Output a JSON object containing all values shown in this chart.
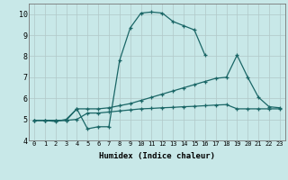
{
  "xlabel": "Humidex (Indice chaleur)",
  "background_color": "#c8e8e8",
  "grid_color": "#b0c8c8",
  "line_color": "#1a6666",
  "xlim": [
    -0.5,
    23.5
  ],
  "ylim": [
    4,
    10.5
  ],
  "xticks": [
    0,
    1,
    2,
    3,
    4,
    5,
    6,
    7,
    8,
    9,
    10,
    11,
    12,
    13,
    14,
    15,
    16,
    17,
    18,
    19,
    20,
    21,
    22,
    23
  ],
  "yticks": [
    4,
    5,
    6,
    7,
    8,
    9,
    10
  ],
  "line1_x": [
    0,
    1,
    2,
    3,
    4,
    5,
    6,
    7,
    8,
    9,
    10,
    11,
    12,
    13,
    14,
    15,
    16,
    17,
    18,
    19,
    20,
    21,
    22,
    23
  ],
  "line1_y": [
    4.95,
    4.95,
    4.95,
    4.95,
    5.5,
    4.55,
    4.65,
    4.65,
    7.8,
    9.35,
    10.05,
    10.1,
    10.05,
    9.65,
    9.45,
    9.25,
    8.05,
    null,
    null,
    null,
    null,
    null,
    null,
    null
  ],
  "line2_x": [
    0,
    1,
    2,
    3,
    4,
    5,
    6,
    7,
    8,
    9,
    10,
    11,
    12,
    13,
    14,
    15,
    16,
    17,
    18,
    19,
    20,
    21,
    22,
    23
  ],
  "line2_y": [
    4.95,
    4.95,
    4.9,
    5.0,
    5.5,
    5.5,
    5.5,
    5.55,
    5.65,
    5.75,
    5.9,
    6.05,
    6.2,
    6.35,
    6.5,
    6.65,
    6.8,
    6.95,
    7.0,
    8.05,
    7.0,
    6.05,
    5.6,
    5.55
  ],
  "line3_x": [
    0,
    1,
    2,
    3,
    4,
    5,
    6,
    7,
    8,
    9,
    10,
    11,
    12,
    13,
    14,
    15,
    16,
    17,
    18,
    19,
    20,
    21,
    22,
    23
  ],
  "line3_y": [
    4.95,
    4.95,
    4.95,
    4.95,
    5.0,
    5.3,
    5.3,
    5.35,
    5.4,
    5.45,
    5.5,
    5.52,
    5.55,
    5.57,
    5.6,
    5.62,
    5.65,
    5.68,
    5.7,
    5.5,
    5.5,
    5.5,
    5.5,
    5.5
  ]
}
